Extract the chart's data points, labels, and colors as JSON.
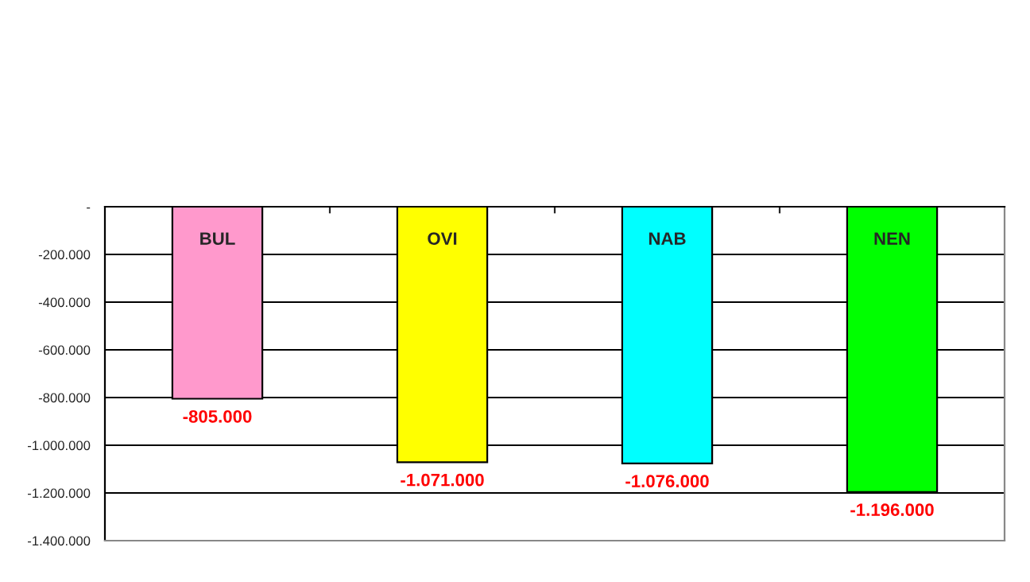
{
  "chart_data": {
    "type": "bar",
    "categories": [
      "BUL",
      "OVI",
      "NAB",
      "NEN"
    ],
    "values": [
      -805000,
      -1071000,
      -1076000,
      -1196000
    ],
    "value_labels": [
      "-805.000",
      "-1.071.000",
      "-1.076.000",
      "-1.196.000"
    ],
    "colors": [
      "#ff99cc",
      "#ffff00",
      "#00ffff",
      "#00ff00"
    ],
    "ylim": [
      -1400000,
      0
    ],
    "yticks": [
      {
        "value": 0,
        "label": "-"
      },
      {
        "value": -200000,
        "label": "-200.000"
      },
      {
        "value": -400000,
        "label": "-400.000"
      },
      {
        "value": -600000,
        "label": "-600.000"
      },
      {
        "value": -800000,
        "label": "-800.000"
      },
      {
        "value": -1000000,
        "label": "-1.000.000"
      },
      {
        "value": -1200000,
        "label": "-1.200.000"
      },
      {
        "value": -1400000,
        "label": "-1.400.000"
      }
    ],
    "grid": "y",
    "legend": false
  }
}
